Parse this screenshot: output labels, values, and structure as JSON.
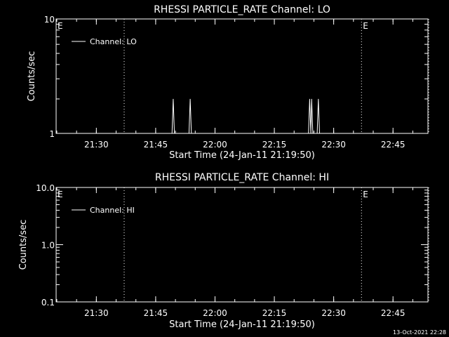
{
  "chart_data": [
    {
      "type": "line",
      "title": "RHESSI PARTICLE_RATE Channel: LO",
      "xlabel": "Start Time (24-Jan-11 21:19:50)",
      "ylabel": "Counts/sec",
      "yscale": "log",
      "ylim": [
        1,
        10
      ],
      "yticks": [
        "1",
        "10"
      ],
      "x_unit": "minutes since 21:19:50",
      "xlim": [
        0,
        94
      ],
      "xticks": [
        "21:30",
        "21:45",
        "22:00",
        "22:15",
        "22:30",
        "22:45"
      ],
      "legend": "Channel: LO",
      "legend_position": "top-left",
      "event_markers": [
        {
          "label": "E",
          "x": 0,
          "dotted": false
        },
        {
          "label": "",
          "x": 17.2,
          "dotted": true
        },
        {
          "label": "E",
          "x": 77.2,
          "dotted": true
        },
        {
          "label": "",
          "x": 94.2,
          "dotted": true
        }
      ],
      "series": [
        {
          "name": "Channel: LO",
          "points": [
            [
              0,
              1
            ],
            [
              29.3,
              1
            ],
            [
              29.6,
              2
            ],
            [
              29.9,
              1
            ],
            [
              33.6,
              1
            ],
            [
              33.9,
              2
            ],
            [
              34.2,
              1
            ],
            [
              63.8,
              1
            ],
            [
              64.1,
              2
            ],
            [
              64.4,
              1
            ],
            [
              64.6,
              2
            ],
            [
              64.9,
              1
            ],
            [
              66.0,
              1
            ],
            [
              66.3,
              2
            ],
            [
              66.6,
              1
            ],
            [
              94,
              1
            ]
          ]
        }
      ]
    },
    {
      "type": "line",
      "title": "RHESSI PARTICLE_RATE Channel: HI",
      "xlabel": "Start Time (24-Jan-11 21:19:50)",
      "ylabel": "Counts/sec",
      "yscale": "log",
      "ylim": [
        0.1,
        10
      ],
      "yticks": [
        "0.1",
        "1.0",
        "10.0"
      ],
      "x_unit": "minutes since 21:19:50",
      "xlim": [
        0,
        94
      ],
      "xticks": [
        "21:30",
        "21:45",
        "22:00",
        "22:15",
        "22:30",
        "22:45"
      ],
      "legend": "Channel: HI",
      "legend_position": "top-left",
      "event_markers": [
        {
          "label": "E",
          "x": 0,
          "dotted": false
        },
        {
          "label": "",
          "x": 17.2,
          "dotted": true
        },
        {
          "label": "E",
          "x": 77.2,
          "dotted": true
        },
        {
          "label": "",
          "x": 94.2,
          "dotted": true
        }
      ],
      "series": [
        {
          "name": "Channel: HI",
          "points": []
        }
      ]
    }
  ],
  "footer": {
    "timestamp": "13-Oct-2021 22:28"
  },
  "colors": {
    "background": "#000000",
    "foreground": "#ffffff"
  }
}
